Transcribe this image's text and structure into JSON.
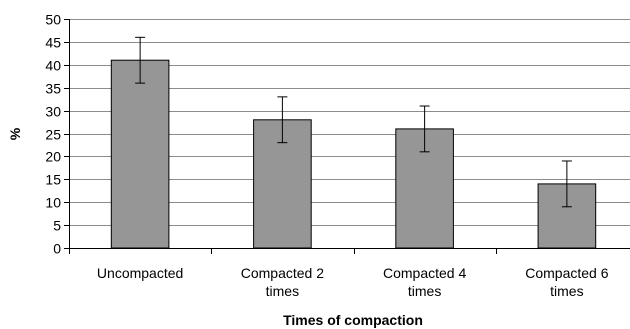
{
  "chart_data": {
    "type": "bar",
    "title": "",
    "xlabel": "Times of compaction",
    "ylabel": "%",
    "ylim": [
      0,
      50
    ],
    "ytick_step": 5,
    "grid": true,
    "legend": "none",
    "bar_color": "#969696",
    "categories": [
      "Uncompacted",
      "Compacted 2 times",
      "Compacted 4 times",
      "Compacted 6 times"
    ],
    "category_lines": [
      [
        "Uncompacted"
      ],
      [
        "Compacted 2",
        "times"
      ],
      [
        "Compacted 4",
        "times"
      ],
      [
        "Compacted 6",
        "times"
      ]
    ],
    "values": [
      41,
      28,
      26,
      14
    ],
    "errors": [
      5,
      5,
      5,
      5
    ]
  }
}
